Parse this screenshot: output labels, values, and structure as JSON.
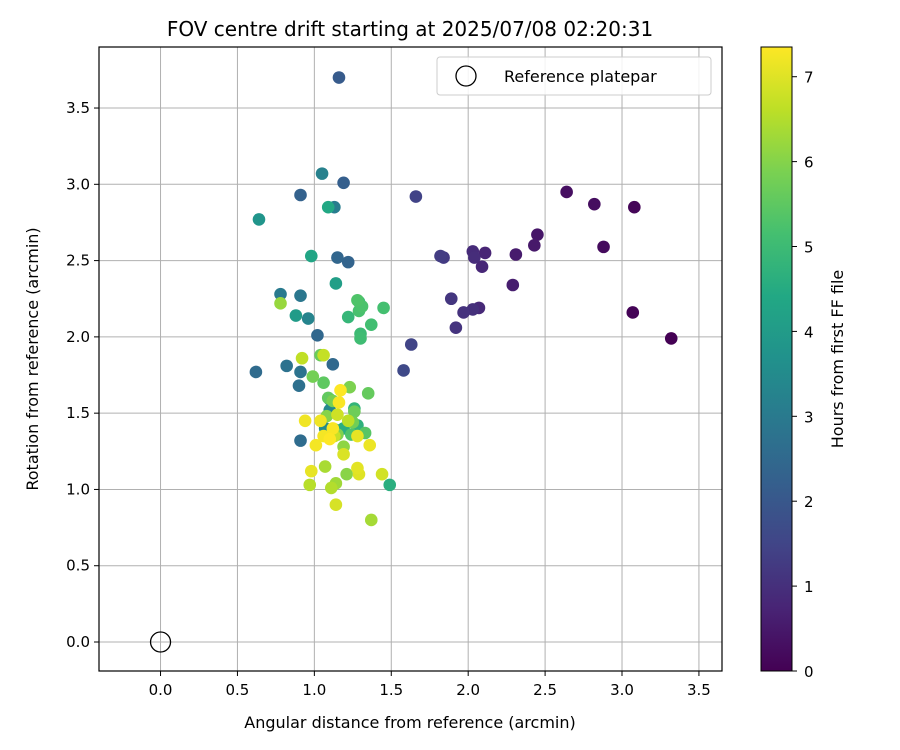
{
  "chart_data": {
    "type": "scatter",
    "title": "FOV centre drift starting at 2025/07/08 02:20:31",
    "xlabel": "Angular distance from reference (arcmin)",
    "ylabel": "Rotation from reference (arcmin)",
    "xlim": [
      -0.4,
      3.65
    ],
    "ylim": [
      -0.19,
      3.9
    ],
    "xticks": [
      "0.0",
      "0.5",
      "1.0",
      "1.5",
      "2.0",
      "2.5",
      "3.0",
      "3.5"
    ],
    "yticks": [
      "0.0",
      "0.5",
      "1.0",
      "1.5",
      "2.0",
      "2.5",
      "3.0",
      "3.5"
    ],
    "grid": true,
    "legend": {
      "placement": "top-right",
      "entries": [
        "Reference platepar"
      ]
    },
    "reference": {
      "x": 0.0,
      "y": 0.0
    },
    "colorbar": {
      "label": "Hours from first FF file",
      "range": [
        0,
        7.35
      ],
      "ticks": [
        "0",
        "1",
        "2",
        "3",
        "4",
        "5",
        "6",
        "7"
      ],
      "colormap": "viridis"
    },
    "points": [
      {
        "x": 3.32,
        "y": 1.99,
        "h": 0.0
      },
      {
        "x": 3.07,
        "y": 2.16,
        "h": 0.05
      },
      {
        "x": 3.08,
        "y": 2.85,
        "h": 0.1
      },
      {
        "x": 2.88,
        "y": 2.59,
        "h": 0.2
      },
      {
        "x": 2.82,
        "y": 2.87,
        "h": 0.25
      },
      {
        "x": 2.64,
        "y": 2.95,
        "h": 0.3
      },
      {
        "x": 2.45,
        "y": 2.67,
        "h": 0.45
      },
      {
        "x": 2.43,
        "y": 2.6,
        "h": 0.5
      },
      {
        "x": 2.31,
        "y": 2.54,
        "h": 0.55
      },
      {
        "x": 2.29,
        "y": 2.34,
        "h": 0.6
      },
      {
        "x": 2.11,
        "y": 2.55,
        "h": 0.75
      },
      {
        "x": 2.09,
        "y": 2.46,
        "h": 0.8
      },
      {
        "x": 2.07,
        "y": 2.19,
        "h": 0.85
      },
      {
        "x": 2.03,
        "y": 2.56,
        "h": 0.9
      },
      {
        "x": 2.04,
        "y": 2.52,
        "h": 0.95
      },
      {
        "x": 2.03,
        "y": 2.18,
        "h": 1.0
      },
      {
        "x": 1.97,
        "y": 2.16,
        "h": 1.05
      },
      {
        "x": 1.92,
        "y": 2.06,
        "h": 1.1
      },
      {
        "x": 1.89,
        "y": 2.25,
        "h": 1.15
      },
      {
        "x": 1.84,
        "y": 2.52,
        "h": 1.25
      },
      {
        "x": 1.82,
        "y": 2.53,
        "h": 1.3
      },
      {
        "x": 1.66,
        "y": 2.92,
        "h": 1.45
      },
      {
        "x": 1.63,
        "y": 1.95,
        "h": 1.5
      },
      {
        "x": 1.58,
        "y": 1.78,
        "h": 1.6
      },
      {
        "x": 1.16,
        "y": 3.7,
        "h": 2.1
      },
      {
        "x": 1.19,
        "y": 3.01,
        "h": 2.2
      },
      {
        "x": 0.91,
        "y": 2.93,
        "h": 2.3
      },
      {
        "x": 1.22,
        "y": 2.49,
        "h": 2.35
      },
      {
        "x": 1.15,
        "y": 2.52,
        "h": 2.4
      },
      {
        "x": 1.02,
        "y": 2.01,
        "h": 2.45
      },
      {
        "x": 1.12,
        "y": 1.82,
        "h": 2.5
      },
      {
        "x": 0.62,
        "y": 1.77,
        "h": 2.55
      },
      {
        "x": 0.91,
        "y": 1.32,
        "h": 2.6
      },
      {
        "x": 0.9,
        "y": 1.68,
        "h": 2.7
      },
      {
        "x": 0.82,
        "y": 1.81,
        "h": 2.75
      },
      {
        "x": 0.91,
        "y": 1.77,
        "h": 2.8
      },
      {
        "x": 0.91,
        "y": 2.27,
        "h": 2.9
      },
      {
        "x": 0.78,
        "y": 2.28,
        "h": 3.0
      },
      {
        "x": 1.13,
        "y": 2.85,
        "h": 3.1
      },
      {
        "x": 1.05,
        "y": 3.07,
        "h": 3.2
      },
      {
        "x": 0.96,
        "y": 2.12,
        "h": 3.3
      },
      {
        "x": 1.1,
        "y": 1.52,
        "h": 3.4
      },
      {
        "x": 1.07,
        "y": 1.4,
        "h": 3.5
      },
      {
        "x": 1.1,
        "y": 1.59,
        "h": 3.6
      },
      {
        "x": 0.64,
        "y": 2.77,
        "h": 3.8
      },
      {
        "x": 0.88,
        "y": 2.14,
        "h": 4.0
      },
      {
        "x": 1.14,
        "y": 2.35,
        "h": 4.1
      },
      {
        "x": 0.98,
        "y": 2.53,
        "h": 4.3
      },
      {
        "x": 1.09,
        "y": 2.85,
        "h": 4.4
      },
      {
        "x": 1.14,
        "y": 1.39,
        "h": 4.5
      },
      {
        "x": 1.49,
        "y": 1.03,
        "h": 4.6
      },
      {
        "x": 1.19,
        "y": 1.4,
        "h": 4.6
      },
      {
        "x": 1.28,
        "y": 1.42,
        "h": 4.7
      },
      {
        "x": 1.26,
        "y": 1.53,
        "h": 4.8
      },
      {
        "x": 1.22,
        "y": 2.13,
        "h": 4.85
      },
      {
        "x": 1.29,
        "y": 2.23,
        "h": 4.9
      },
      {
        "x": 1.3,
        "y": 2.02,
        "h": 5.0
      },
      {
        "x": 1.3,
        "y": 1.99,
        "h": 5.05
      },
      {
        "x": 1.37,
        "y": 2.08,
        "h": 5.1
      },
      {
        "x": 1.45,
        "y": 2.19,
        "h": 5.15
      },
      {
        "x": 1.29,
        "y": 2.17,
        "h": 5.2
      },
      {
        "x": 1.31,
        "y": 2.2,
        "h": 5.25
      },
      {
        "x": 1.28,
        "y": 2.24,
        "h": 5.3
      },
      {
        "x": 1.24,
        "y": 1.36,
        "h": 5.3
      },
      {
        "x": 1.33,
        "y": 1.37,
        "h": 5.4
      },
      {
        "x": 1.06,
        "y": 1.7,
        "h": 5.5
      },
      {
        "x": 1.09,
        "y": 1.6,
        "h": 5.55
      },
      {
        "x": 1.35,
        "y": 1.63,
        "h": 5.6
      },
      {
        "x": 1.04,
        "y": 1.88,
        "h": 5.65
      },
      {
        "x": 1.26,
        "y": 1.51,
        "h": 5.7
      },
      {
        "x": 1.25,
        "y": 1.44,
        "h": 5.75
      },
      {
        "x": 0.99,
        "y": 1.74,
        "h": 5.8
      },
      {
        "x": 1.12,
        "y": 1.58,
        "h": 5.85
      },
      {
        "x": 1.23,
        "y": 1.67,
        "h": 5.9
      },
      {
        "x": 1.15,
        "y": 1.36,
        "h": 5.95
      },
      {
        "x": 1.08,
        "y": 1.48,
        "h": 6.0
      },
      {
        "x": 1.21,
        "y": 1.1,
        "h": 6.05
      },
      {
        "x": 1.19,
        "y": 1.28,
        "h": 6.1
      },
      {
        "x": 0.78,
        "y": 2.22,
        "h": 6.2
      },
      {
        "x": 1.14,
        "y": 1.04,
        "h": 6.3
      },
      {
        "x": 1.37,
        "y": 0.8,
        "h": 6.35
      },
      {
        "x": 1.07,
        "y": 1.15,
        "h": 6.4
      },
      {
        "x": 1.11,
        "y": 1.01,
        "h": 6.5
      },
      {
        "x": 0.97,
        "y": 1.03,
        "h": 6.55
      },
      {
        "x": 1.22,
        "y": 1.45,
        "h": 6.6
      },
      {
        "x": 0.92,
        "y": 1.86,
        "h": 6.65
      },
      {
        "x": 1.06,
        "y": 1.88,
        "h": 6.7
      },
      {
        "x": 1.13,
        "y": 1.35,
        "h": 6.75
      },
      {
        "x": 1.15,
        "y": 1.49,
        "h": 6.8
      },
      {
        "x": 1.44,
        "y": 1.1,
        "h": 6.85
      },
      {
        "x": 1.14,
        "y": 0.9,
        "h": 6.9
      },
      {
        "x": 1.19,
        "y": 1.23,
        "h": 6.95
      },
      {
        "x": 1.29,
        "y": 1.1,
        "h": 7.0
      },
      {
        "x": 1.28,
        "y": 1.14,
        "h": 7.05
      },
      {
        "x": 1.28,
        "y": 1.35,
        "h": 7.1
      },
      {
        "x": 0.98,
        "y": 1.12,
        "h": 7.1
      },
      {
        "x": 1.36,
        "y": 1.29,
        "h": 7.15
      },
      {
        "x": 1.04,
        "y": 1.45,
        "h": 7.2
      },
      {
        "x": 0.94,
        "y": 1.45,
        "h": 7.2
      },
      {
        "x": 1.01,
        "y": 1.29,
        "h": 7.25
      },
      {
        "x": 1.06,
        "y": 1.35,
        "h": 7.25
      },
      {
        "x": 1.12,
        "y": 1.4,
        "h": 7.3
      },
      {
        "x": 1.16,
        "y": 1.57,
        "h": 7.3
      },
      {
        "x": 1.17,
        "y": 1.65,
        "h": 7.35
      },
      {
        "x": 1.1,
        "y": 1.33,
        "h": 7.35
      }
    ]
  }
}
